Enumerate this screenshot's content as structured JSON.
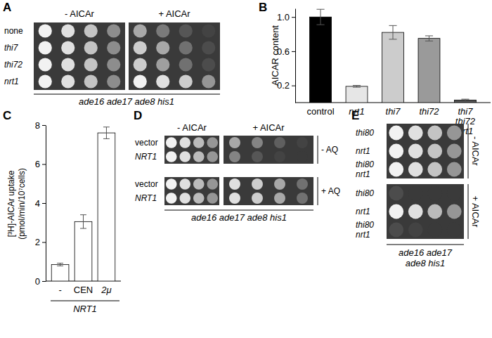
{
  "chart_data": [
    {
      "letter": "B",
      "type": "bar",
      "y_label": "AICAR content",
      "categories": [
        "control",
        "nrt1",
        "thi7",
        "thi72",
        "thi7 thi72 nrt1"
      ],
      "values": [
        1.0,
        0.19,
        0.82,
        0.75,
        0.03
      ],
      "errors": [
        0.09,
        0.01,
        0.08,
        0.03,
        0.01
      ],
      "colors": [
        "#000000",
        "#e6e6e6",
        "#cccccc",
        "#9a9a9a",
        "#555555"
      ],
      "ylim": [
        0,
        1.1
      ],
      "yticks": [
        0.2,
        0.6,
        {
          "value": 1,
          "label": "1.0"
        }
      ]
    },
    {
      "letter": "C",
      "type": "bar",
      "y_label": [
        "[³H]-AICAr uptake",
        "(pmol/min/10⁷cells)"
      ],
      "x_label": "NRT1",
      "categories": [
        "-",
        "CEN",
        "2μ"
      ],
      "values": [
        0.85,
        3.05,
        7.6
      ],
      "errors": [
        0.07,
        0.35,
        0.3
      ],
      "color": "#ffffff",
      "ylim": [
        0,
        8
      ],
      "yticks": [
        0,
        2,
        4,
        6,
        8
      ]
    }
  ],
  "spot_panels": [
    {
      "letter": "A",
      "conditions": [
        "- AICAr",
        "+ AICAr"
      ],
      "rows": [
        "none",
        "thi7",
        "thi72",
        "nrt1"
      ],
      "genotype": "ade16 ade17 ade8 his1",
      "growth": [
        [
          [
            1,
            0.9,
            0.75,
            0.45
          ],
          [
            1,
            0.9,
            0.75,
            0.45
          ],
          [
            1,
            0.9,
            0.75,
            0.45
          ],
          [
            1,
            0.9,
            0.75,
            0.45
          ]
        ],
        [
          [
            0.6,
            0.35,
            0.15,
            0.05
          ],
          [
            0.8,
            0.6,
            0.3,
            0.1
          ],
          [
            0.8,
            0.55,
            0.3,
            0.1
          ],
          [
            1,
            0.9,
            0.8,
            0.5
          ]
        ]
      ]
    },
    {
      "letter": "D",
      "conditions": [
        "- AICAr",
        "+ AICAr"
      ],
      "treatments": [
        "- AQ",
        "+ AQ"
      ],
      "rows": [
        "vector",
        "NRT1"
      ],
      "genotype": "ade16 ade17 ade8 his1",
      "growth": [
        [
          [
            [
              1,
              0.9,
              0.7,
              0.5
            ],
            [
              1,
              0.9,
              0.7,
              0.5
            ]
          ],
          [
            [
              0.6,
              0.4,
              0.2,
              0.05
            ],
            [
              0.4,
              0.15,
              0.05,
              0
            ]
          ]
        ],
        [
          [
            [
              1,
              0.9,
              0.7,
              0.5
            ],
            [
              1,
              0.9,
              0.7,
              0.5
            ]
          ],
          [
            [
              0.9,
              0.8,
              0.6,
              0.3
            ],
            [
              0.9,
              0.8,
              0.6,
              0.3
            ]
          ]
        ]
      ]
    },
    {
      "letter": "E",
      "conditions": [
        "- AICAr",
        "+ AICAr"
      ],
      "rows": [
        "thi80",
        "nrt1",
        "thi80 nrt1"
      ],
      "genotype": "ade16 ade17 ade8 his1",
      "growth": [
        [
          [
            1,
            0.9,
            0.75,
            0.5
          ],
          [
            1,
            0.9,
            0.75,
            0.5
          ],
          [
            1,
            0.9,
            0.75,
            0.5
          ]
        ],
        [
          [
            0.1,
            0,
            0,
            0
          ],
          [
            1,
            0.9,
            0.7,
            0.5
          ],
          [
            0.1,
            0.05,
            0,
            0
          ]
        ]
      ]
    }
  ]
}
